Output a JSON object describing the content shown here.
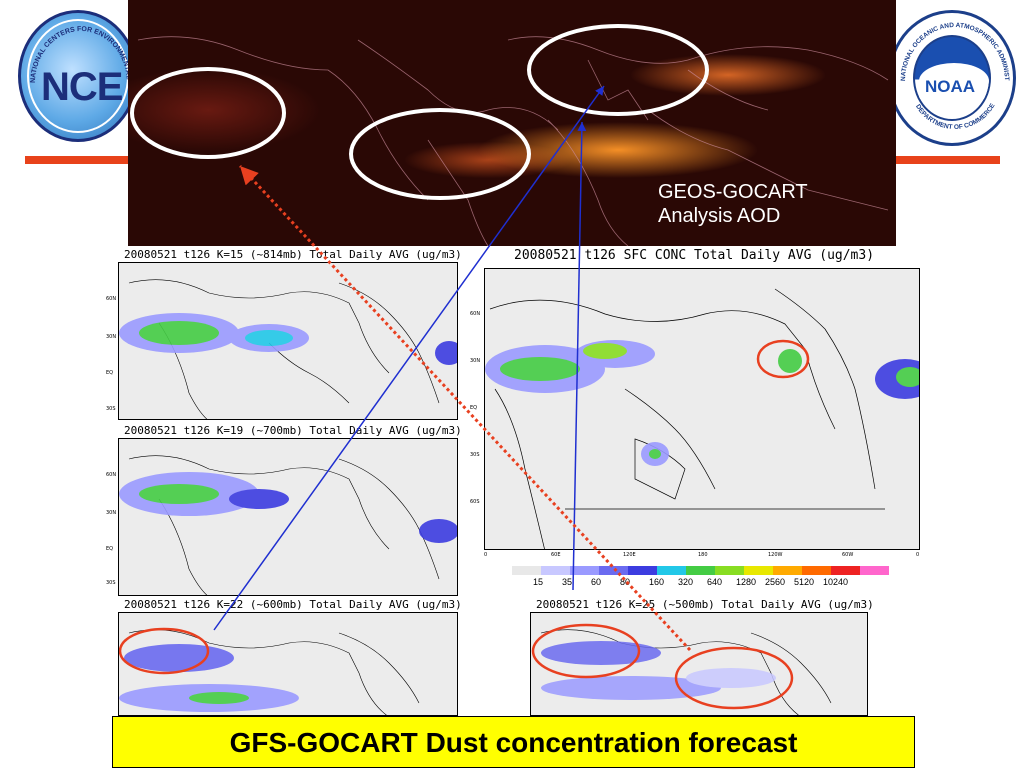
{
  "logos": {
    "ncep_text": "NCE",
    "ncep_ring_text": "NATIONAL CENTERS FOR ENVIRONMENTAL",
    "noaa_text": "NOAA",
    "noaa_ring_text": "NATIONAL OCEANIC AND ATMOSPHERIC ADMINISTRATION",
    "noaa_ring_bottom": "DEPARTMENT OF COMMERCE"
  },
  "top_image": {
    "label_line1": "GEOS-GOCART",
    "label_line2": "Analysis AOD"
  },
  "panels": {
    "k15_title": "20080521 t126 K=15 (~814mb) Total Daily AVG  (ug/m3)",
    "k19_title": "20080521 t126 K=19 (~700mb) Total Daily AVG  (ug/m3)",
    "k22_title": "20080521 t126 K=22 (~600mb) Total Daily AVG  (ug/m3)",
    "k25_title": "20080521 t126 K=25 (~500mb) Total Daily AVG  (ug/m3)",
    "sfc_title": "20080521 t126 SFC CONC Total Daily AVG  (ug/m3)"
  },
  "small_lat_labels": [
    "60N",
    "30N",
    "EQ",
    "30S"
  ],
  "sfc_lat_labels": [
    "60N",
    "30N",
    "EQ",
    "30S",
    "60S"
  ],
  "sfc_lon_labels": [
    "0",
    "60E",
    "120E",
    "180",
    "120W",
    "60W",
    "0"
  ],
  "colorbar": {
    "labels": [
      "15",
      "35",
      "60",
      "80",
      "160",
      "320",
      "640",
      "1280",
      "2560",
      "5120",
      "10240"
    ],
    "colors": [
      "#e8e8e8",
      "#c8c8ff",
      "#9a9aff",
      "#6b6bf0",
      "#3c3ce0",
      "#22c8e8",
      "#44cc44",
      "#88dd22",
      "#e8e800",
      "#ffaa00",
      "#ff6a00",
      "#ee2222",
      "#ff66cc"
    ]
  },
  "banner": {
    "text": "GFS-GOCART  Dust concentration forecast"
  },
  "colors": {
    "accent_red": "#e8421a",
    "banner_yellow": "#ffff00",
    "arrow_blue": "#1f2fd0",
    "annotation_red": "#e84020"
  }
}
